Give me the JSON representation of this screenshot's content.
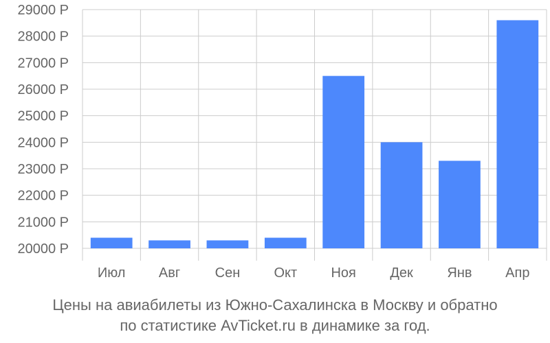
{
  "chart_data": {
    "type": "bar",
    "categories": [
      "Июл",
      "Авг",
      "Сен",
      "Окт",
      "Ноя",
      "Дек",
      "Янв",
      "Апр"
    ],
    "values": [
      20400,
      20300,
      20300,
      20400,
      26500,
      24000,
      23300,
      28600
    ],
    "ylim": [
      20000,
      29000
    ],
    "yticks": [
      20000,
      21000,
      22000,
      23000,
      24000,
      25000,
      26000,
      27000,
      28000,
      29000
    ],
    "currency_suffix": " Р",
    "grid": true,
    "bar_color": "#4d88fc"
  },
  "caption": {
    "line1": "Цены на авиабилеты из Южно-Сахалинска в Москву и обратно",
    "line2": "по статистике AvTicket.ru в динамике за год."
  },
  "colors": {
    "grid": "#cccccc",
    "text": "#666666"
  }
}
